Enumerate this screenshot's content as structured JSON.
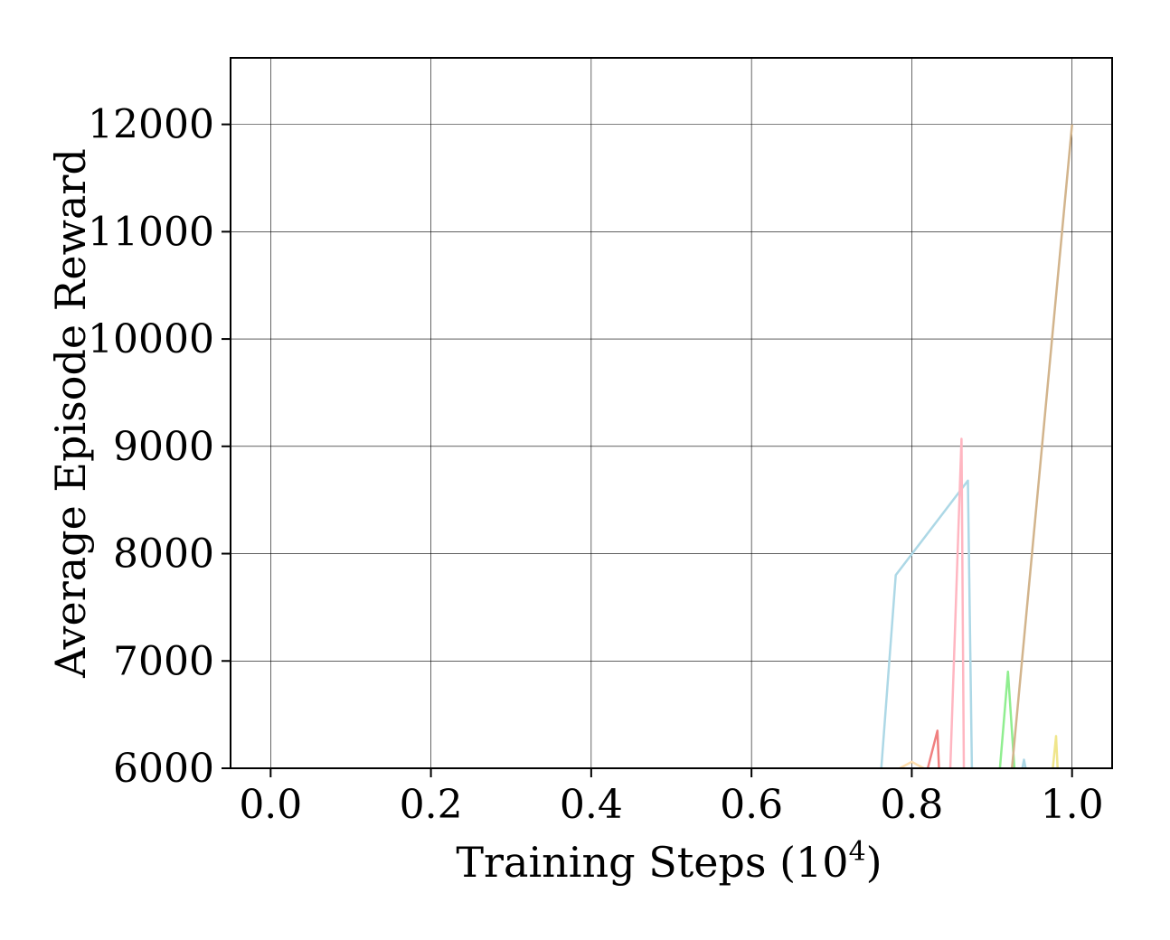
{
  "chart_data": {
    "type": "line",
    "title": "",
    "xlabel": "Training Steps (10",
    "xlabel_exponent": "4",
    "xlabel_close": ")",
    "ylabel": "Average Episode Reward",
    "xlim": [
      -0.05,
      1.05
    ],
    "ylim": [
      6000,
      12620
    ],
    "xticks": [
      0.0,
      0.2,
      0.4,
      0.6,
      0.8,
      1.0
    ],
    "xtick_labels": [
      "0.0",
      "0.2",
      "0.4",
      "0.6",
      "0.8",
      "1.0"
    ],
    "yticks": [
      6000,
      7000,
      8000,
      9000,
      10000,
      11000,
      12000
    ],
    "ytick_labels": [
      "6000",
      "7000",
      "8000",
      "9000",
      "10000",
      "11000",
      "12000"
    ],
    "grid": true,
    "legend": false,
    "series": [
      {
        "color": "#add8e6",
        "x": [
          0.762,
          0.78,
          0.87,
          0.875
        ],
        "y": [
          6000,
          7800,
          8680,
          6000
        ]
      },
      {
        "color": "#ffb6c1",
        "x": [
          0.848,
          0.862,
          0.865
        ],
        "y": [
          6000,
          9070,
          6000
        ]
      },
      {
        "color": "#f08080",
        "x": [
          0.82,
          0.832,
          0.834
        ],
        "y": [
          6000,
          6350,
          6000
        ]
      },
      {
        "color": "#ffdead",
        "x": [
          0.785,
          0.8,
          0.815
        ],
        "y": [
          6000,
          6060,
          6000
        ]
      },
      {
        "color": "#90ee90",
        "x": [
          0.91,
          0.92,
          0.928
        ],
        "y": [
          6000,
          6900,
          6000
        ]
      },
      {
        "color": "#add8e6",
        "x": [
          0.938,
          0.94,
          0.942
        ],
        "y": [
          6000,
          6080,
          6000
        ]
      },
      {
        "color": "#d2b48c",
        "x": [
          0.925,
          1.0
        ],
        "y": [
          6000,
          12000
        ]
      },
      {
        "color": "#f0e68c",
        "x": [
          0.976,
          0.98,
          0.982
        ],
        "y": [
          6000,
          6300,
          6000
        ]
      }
    ]
  }
}
